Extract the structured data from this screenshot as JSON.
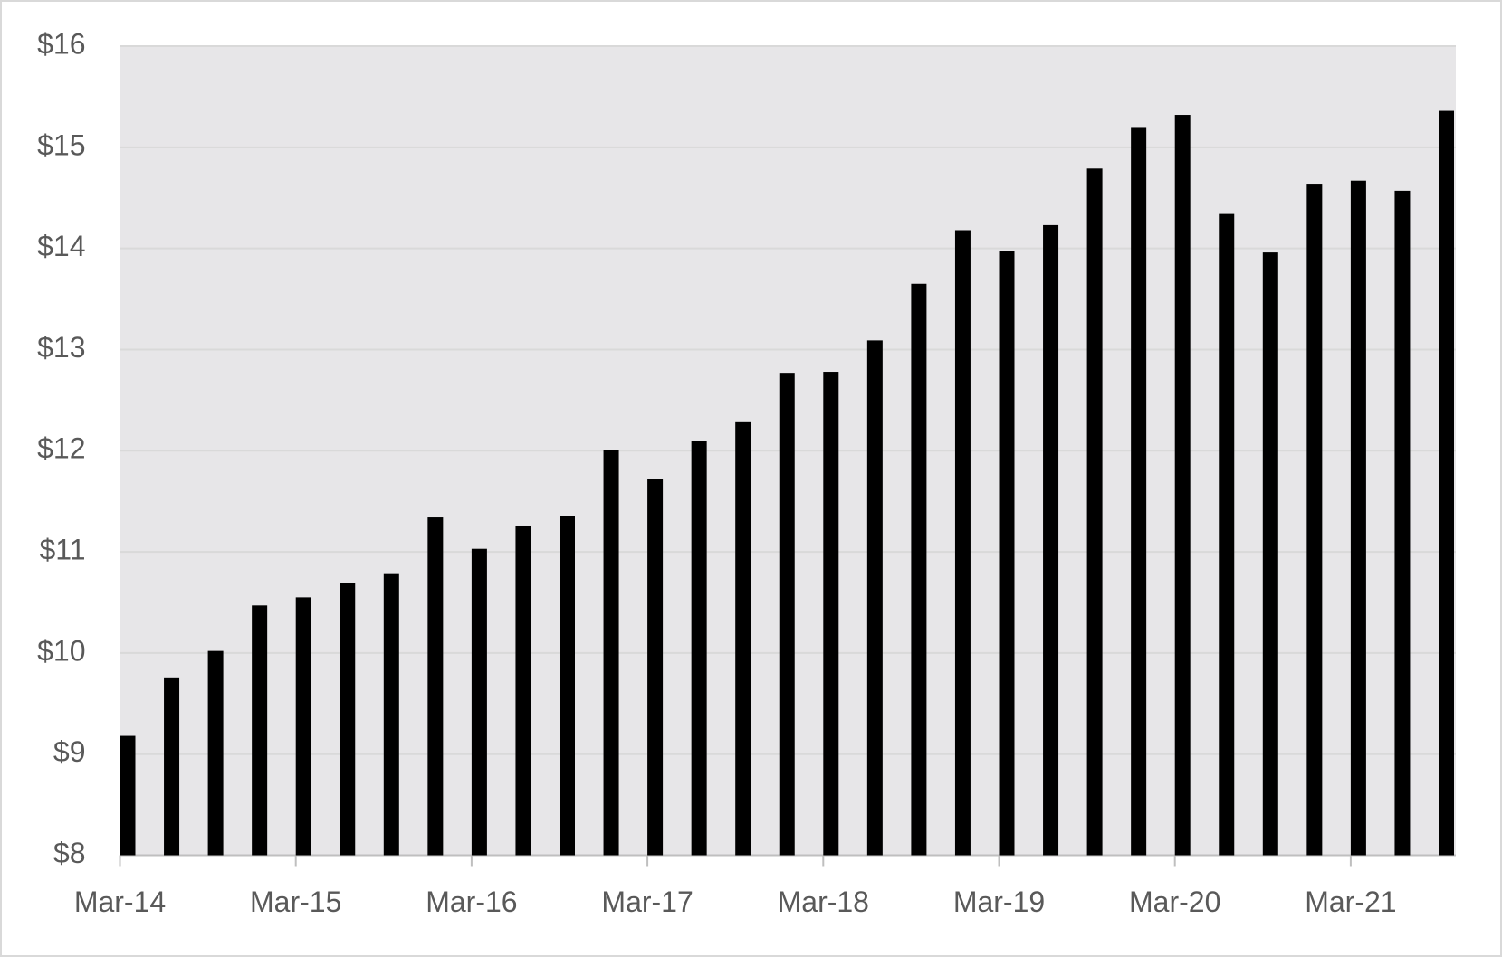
{
  "chart_data": {
    "type": "bar",
    "categories": [
      "Mar-14",
      null,
      null,
      null,
      "Mar-15",
      null,
      null,
      null,
      "Mar-16",
      null,
      null,
      null,
      "Mar-17",
      null,
      null,
      null,
      "Mar-18",
      null,
      null,
      null,
      "Mar-19",
      null,
      null,
      null,
      "Mar-20",
      null,
      null,
      null,
      "Mar-21",
      null,
      null
    ],
    "values": [
      9.18,
      9.75,
      10.02,
      10.47,
      10.55,
      10.69,
      10.78,
      11.34,
      11.03,
      11.26,
      11.35,
      12.01,
      11.72,
      12.1,
      12.29,
      12.77,
      12.78,
      13.09,
      13.65,
      14.18,
      13.97,
      14.23,
      14.79,
      15.2,
      15.32,
      14.34,
      13.96,
      14.64,
      14.67,
      14.57,
      15.36
    ],
    "color": "#000000",
    "ylim": [
      8,
      16
    ],
    "yticks": [
      {
        "value": 8,
        "label": "$8"
      },
      {
        "value": 9,
        "label": "$9"
      },
      {
        "value": 10,
        "label": "$10"
      },
      {
        "value": 11,
        "label": "$11"
      },
      {
        "value": 12,
        "label": "$12"
      },
      {
        "value": 13,
        "label": "$13"
      },
      {
        "value": 14,
        "label": "$14"
      },
      {
        "value": 15,
        "label": "$15"
      },
      {
        "value": 16,
        "label": "$16"
      }
    ],
    "grid": true
  }
}
